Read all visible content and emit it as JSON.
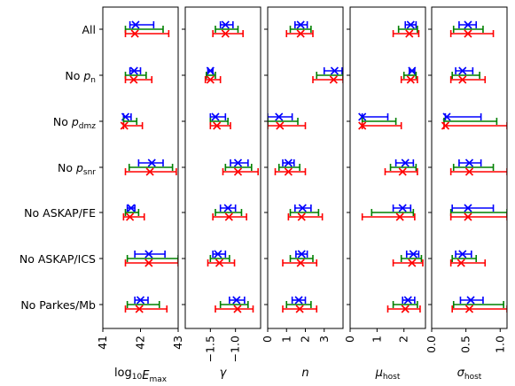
{
  "chart_data": {
    "type": "errorbar",
    "rows": [
      "All",
      "No p_n",
      "No p_dmz",
      "No p_snr",
      "No ASKAP/FE",
      "No ASKAP/ICS",
      "No Parkes/Mb"
    ],
    "row_labels": [
      {
        "base": "All",
        "sub": ""
      },
      {
        "base": "No p",
        "sub": "n"
      },
      {
        "base": "No p",
        "sub": "dmz"
      },
      {
        "base": "No p",
        "sub": "snr"
      },
      {
        "base": "No ASKAP/FE",
        "sub": ""
      },
      {
        "base": "No ASKAP/ICS",
        "sub": ""
      },
      {
        "base": "No Parkes/Mb",
        "sub": ""
      }
    ],
    "series": [
      {
        "name": "",
        "color": "#0000ff",
        "marker": "x"
      },
      {
        "name": "",
        "color": "#008000",
        "marker": "none"
      },
      {
        "name": "",
        "color": "#ff0000",
        "marker": "x"
      }
    ],
    "panels": [
      {
        "xlabel": {
          "base": "log",
          "sub": "10",
          "var": "E",
          "varsub": "max"
        },
        "xlim": [
          41,
          43
        ],
        "ticks": [
          41,
          42,
          43
        ],
        "tick_labels": [
          "41",
          "42",
          "43"
        ],
        "values": [
          [
            [
              41.87,
              41.72,
              42.35
            ],
            [
              41.85,
              41.6,
              42.6
            ],
            [
              41.85,
              41.6,
              42.75
            ]
          ],
          [
            [
              41.83,
              41.72,
              42.0
            ],
            [
              41.82,
              41.6,
              42.15
            ],
            [
              41.82,
              41.6,
              42.3
            ]
          ],
          [
            [
              41.6,
              41.55,
              41.75
            ],
            [
              41.58,
              41.55,
              41.9
            ],
            [
              41.57,
              41.55,
              42.05
            ]
          ],
          [
            [
              42.3,
              41.95,
              42.6
            ],
            [
              42.3,
              41.7,
              42.85
            ],
            [
              42.25,
              41.6,
              42.95
            ]
          ],
          [
            [
              41.75,
              41.65,
              41.85
            ],
            [
              41.75,
              41.6,
              41.95
            ],
            [
              41.72,
              41.55,
              42.1
            ]
          ],
          [
            [
              42.22,
              41.85,
              42.65
            ],
            [
              42.22,
              41.65,
              43.0
            ],
            [
              42.22,
              41.6,
              43.0
            ]
          ],
          [
            [
              42.0,
              41.85,
              42.2
            ],
            [
              41.98,
              41.65,
              42.5
            ],
            [
              41.97,
              41.6,
              42.7
            ]
          ]
        ]
      },
      {
        "xlabel": {
          "base": "",
          "sub": "",
          "var": "γ",
          "varsub": ""
        },
        "xlim": [
          -2.0,
          -0.5
        ],
        "ticks": [
          -1.5,
          -1.0
        ],
        "tick_labels": [
          "−1.5",
          "−1.0"
        ],
        "values": [
          [
            [
              -1.2,
              -1.3,
              -1.05
            ],
            [
              -1.2,
              -1.4,
              -0.95
            ],
            [
              -1.2,
              -1.45,
              -0.85
            ]
          ],
          [
            [
              -1.5,
              -1.55,
              -1.45
            ],
            [
              -1.5,
              -1.58,
              -1.4
            ],
            [
              -1.5,
              -1.6,
              -1.3
            ]
          ],
          [
            [
              -1.4,
              -1.5,
              -1.2
            ],
            [
              -1.38,
              -1.5,
              -1.15
            ],
            [
              -1.37,
              -1.5,
              -1.1
            ]
          ],
          [
            [
              -0.95,
              -1.1,
              -0.75
            ],
            [
              -0.95,
              -1.2,
              -0.68
            ],
            [
              -0.95,
              -1.25,
              -0.55
            ]
          ],
          [
            [
              -1.15,
              -1.3,
              -1.0
            ],
            [
              -1.15,
              -1.4,
              -0.88
            ],
            [
              -1.13,
              -1.45,
              -0.78
            ]
          ],
          [
            [
              -1.35,
              -1.45,
              -1.2
            ],
            [
              -1.32,
              -1.5,
              -1.12
            ],
            [
              -1.32,
              -1.55,
              -1.02
            ]
          ],
          [
            [
              -0.98,
              -1.12,
              -0.82
            ],
            [
              -0.98,
              -1.3,
              -0.75
            ],
            [
              -0.96,
              -1.4,
              -0.65
            ]
          ]
        ]
      },
      {
        "xlabel": {
          "base": "",
          "sub": "",
          "var": "n",
          "varsub": ""
        },
        "xlim": [
          0,
          4
        ],
        "ticks": [
          0,
          1,
          2,
          3
        ],
        "tick_labels": [
          "0",
          "1",
          "2",
          "3"
        ],
        "values": [
          [
            [
              1.75,
              1.45,
              2.1
            ],
            [
              1.75,
              1.2,
              2.3
            ],
            [
              1.75,
              1.0,
              2.4
            ]
          ],
          [
            [
              3.55,
              3.0,
              3.95
            ],
            [
              3.5,
              2.6,
              4.0
            ],
            [
              3.5,
              2.4,
              4.0
            ]
          ],
          [
            [
              0.6,
              0.0,
              1.3
            ],
            [
              0.6,
              0.0,
              1.6
            ],
            [
              0.65,
              0.0,
              2.0
            ]
          ],
          [
            [
              1.1,
              0.8,
              1.4
            ],
            [
              1.1,
              0.6,
              1.7
            ],
            [
              1.1,
              0.4,
              2.0
            ]
          ],
          [
            [
              1.85,
              1.45,
              2.3
            ],
            [
              1.8,
              1.2,
              2.7
            ],
            [
              1.8,
              1.1,
              2.9
            ]
          ],
          [
            [
              1.8,
              1.5,
              2.1
            ],
            [
              1.8,
              1.2,
              2.4
            ],
            [
              1.75,
              0.8,
              2.6
            ]
          ],
          [
            [
              1.65,
              1.3,
              2.0
            ],
            [
              1.65,
              1.0,
              2.3
            ],
            [
              1.7,
              0.8,
              2.6
            ]
          ]
        ]
      },
      {
        "xlabel": {
          "base": "",
          "sub": "",
          "var": "μ",
          "varsub": "host"
        },
        "xlim": [
          0,
          2.8
        ],
        "ticks": [
          0,
          1,
          2
        ],
        "tick_labels": [
          "0",
          "1",
          "2"
        ],
        "values": [
          [
            [
              2.25,
              2.05,
              2.45
            ],
            [
              2.2,
              1.8,
              2.5
            ],
            [
              2.2,
              1.6,
              2.55
            ]
          ],
          [
            [
              2.3,
              2.2,
              2.4
            ],
            [
              2.25,
              2.0,
              2.45
            ],
            [
              2.25,
              1.9,
              2.5
            ]
          ],
          [
            [
              0.45,
              0.45,
              1.4
            ],
            [
              0.45,
              0.45,
              1.7
            ],
            [
              0.45,
              0.45,
              1.9
            ]
          ],
          [
            [
              2.05,
              1.7,
              2.35
            ],
            [
              2.0,
              1.5,
              2.45
            ],
            [
              1.95,
              1.3,
              2.5
            ]
          ],
          [
            [
              1.95,
              1.6,
              2.25
            ],
            [
              1.85,
              0.8,
              2.35
            ],
            [
              1.85,
              0.45,
              2.4
            ]
          ],
          [
            [
              2.35,
              2.1,
              2.55
            ],
            [
              2.3,
              1.9,
              2.65
            ],
            [
              2.3,
              1.6,
              2.7
            ]
          ],
          [
            [
              2.15,
              1.95,
              2.4
            ],
            [
              2.05,
              1.6,
              2.5
            ],
            [
              2.05,
              1.4,
              2.6
            ]
          ]
        ]
      },
      {
        "xlabel": {
          "base": "",
          "sub": "",
          "var": "σ",
          "varsub": "host"
        },
        "xlim": [
          0,
          1.1
        ],
        "ticks": [
          0.0,
          0.5,
          1.0
        ],
        "tick_labels": [
          "0.0",
          "0.5",
          "1.0"
        ],
        "values": [
          [
            [
              0.53,
              0.4,
              0.65
            ],
            [
              0.53,
              0.32,
              0.75
            ],
            [
              0.53,
              0.28,
              0.9
            ]
          ],
          [
            [
              0.45,
              0.35,
              0.6
            ],
            [
              0.45,
              0.3,
              0.7
            ],
            [
              0.45,
              0.28,
              0.78
            ]
          ],
          [
            [
              0.22,
              0.2,
              0.72
            ],
            [
              0.2,
              0.18,
              0.95
            ],
            [
              0.2,
              0.18,
              1.1
            ]
          ],
          [
            [
              0.55,
              0.4,
              0.72
            ],
            [
              0.55,
              0.32,
              0.9
            ],
            [
              0.55,
              0.28,
              1.1
            ]
          ],
          [
            [
              0.53,
              0.3,
              0.9
            ],
            [
              0.53,
              0.28,
              1.1
            ],
            [
              0.53,
              0.28,
              1.1
            ]
          ],
          [
            [
              0.45,
              0.35,
              0.58
            ],
            [
              0.45,
              0.3,
              0.65
            ],
            [
              0.43,
              0.28,
              0.78
            ]
          ],
          [
            [
              0.57,
              0.42,
              0.75
            ],
            [
              0.55,
              0.32,
              1.05
            ],
            [
              0.55,
              0.3,
              1.1
            ]
          ]
        ]
      }
    ]
  }
}
